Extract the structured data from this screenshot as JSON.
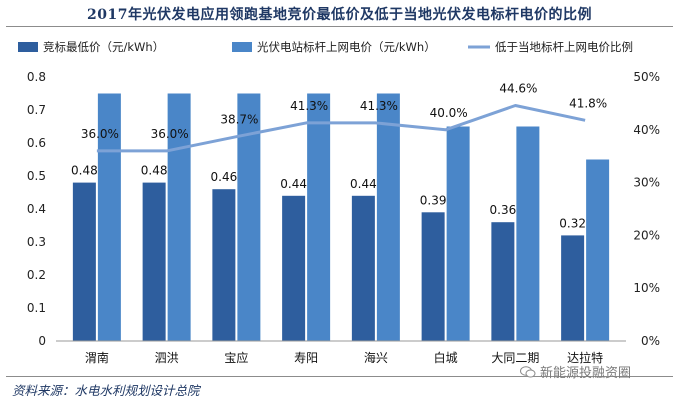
{
  "chart_data": {
    "type": "bar",
    "title": "2017年光伏发电应用领跑基地竞价最低价及低于当地光伏发电标杆电价的比例",
    "categories": [
      "渭南",
      "泗洪",
      "宝应",
      "寿阳",
      "海兴",
      "白城",
      "大同二期",
      "达拉特"
    ],
    "series": [
      {
        "name": "竞标最低价（元/kWh）",
        "type": "bar",
        "axis": "left",
        "color": "#2e5e9e",
        "values": [
          0.48,
          0.48,
          0.46,
          0.44,
          0.44,
          0.39,
          0.36,
          0.32
        ],
        "labels": [
          "0.48",
          "0.48",
          "0.46",
          "0.44",
          "0.44",
          "0.39",
          "0.36",
          "0.32"
        ]
      },
      {
        "name": "光伏电站标杆上网电价（元/kWh）",
        "type": "bar",
        "axis": "left",
        "color": "#4a86c8",
        "values": [
          0.75,
          0.75,
          0.75,
          0.75,
          0.75,
          0.65,
          0.65,
          0.55
        ]
      },
      {
        "name": "低于当地标杆上网电价比例",
        "type": "line",
        "axis": "right",
        "color": "#7da2d6",
        "values": [
          36.0,
          36.0,
          38.7,
          41.3,
          41.3,
          40.0,
          44.6,
          41.8
        ],
        "labels": [
          "36.0%",
          "36.0%",
          "38.7%",
          "41.3%",
          "41.3%",
          "40.0%",
          "44.6%",
          "41.8%"
        ]
      }
    ],
    "ylim": [
      0,
      0.8
    ],
    "y_ticks": [
      "0",
      "0.1",
      "0.2",
      "0.3",
      "0.4",
      "0.5",
      "0.6",
      "0.7",
      "0.8"
    ],
    "y2lim": [
      0,
      50
    ],
    "y2_ticks": [
      "0%",
      "10%",
      "20%",
      "30%",
      "40%",
      "50%"
    ],
    "legend_position": "top",
    "grid": false
  },
  "source": "资料来源：水电水利规划设计总院",
  "watermark": "新能源投融资圈",
  "watermark_icon": "wechat-icon"
}
